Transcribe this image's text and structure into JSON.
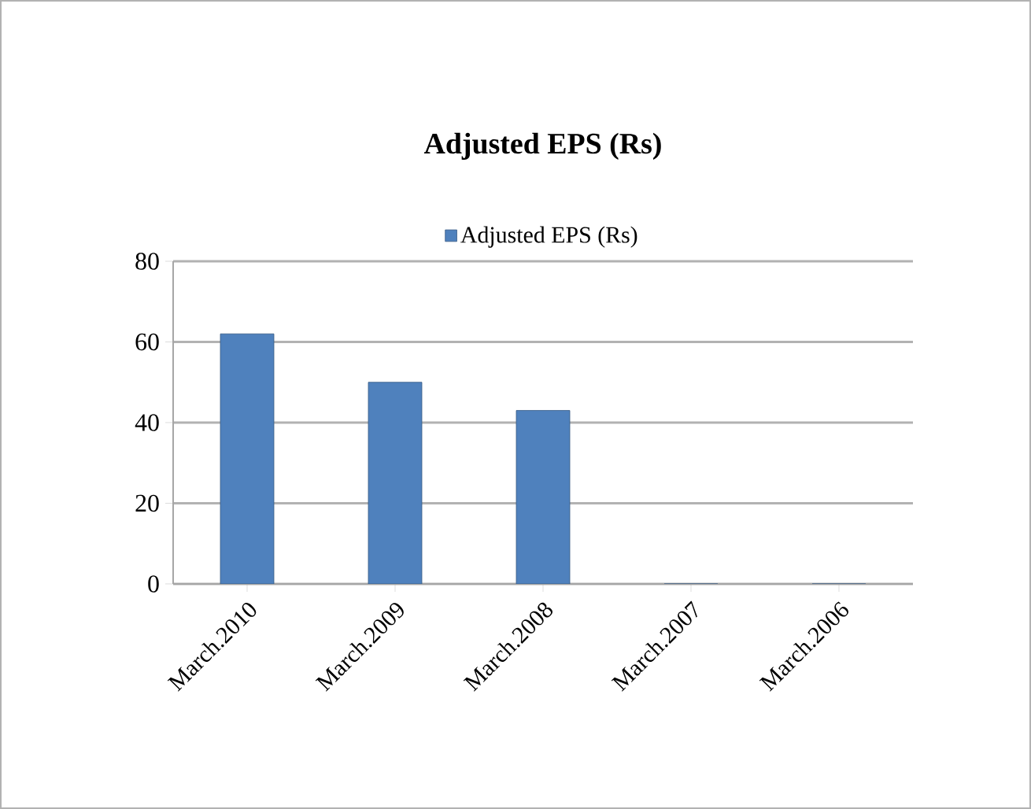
{
  "chart_data": {
    "type": "bar",
    "title": "Adjusted EPS (Rs)",
    "categories": [
      "March.2010",
      "March.2009",
      "March.2008",
      "March.2007",
      "March.2006"
    ],
    "series": [
      {
        "name": "Adjusted EPS (Rs)",
        "color": "#4f81bd",
        "values": [
          62,
          50,
          43,
          0,
          0
        ]
      }
    ],
    "ylim": [
      0,
      80
    ],
    "yticks": [
      0,
      20,
      40,
      60,
      80
    ],
    "grid": "y",
    "legend": "top"
  }
}
